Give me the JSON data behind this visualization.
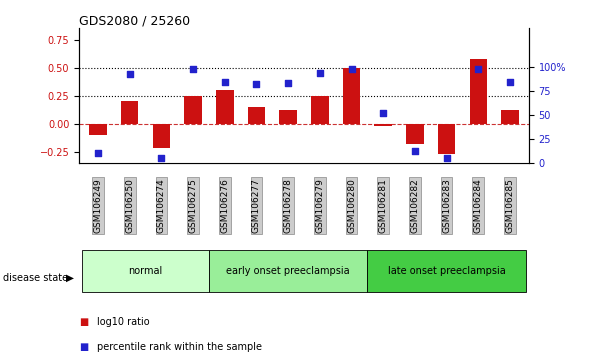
{
  "title": "GDS2080 / 25260",
  "samples": [
    "GSM106249",
    "GSM106250",
    "GSM106274",
    "GSM106275",
    "GSM106276",
    "GSM106277",
    "GSM106278",
    "GSM106279",
    "GSM106280",
    "GSM106281",
    "GSM106282",
    "GSM106283",
    "GSM106284",
    "GSM106285"
  ],
  "log10_ratio": [
    -0.1,
    0.2,
    -0.22,
    0.25,
    0.3,
    0.15,
    0.12,
    0.25,
    0.5,
    -0.02,
    -0.18,
    -0.27,
    0.58,
    0.12
  ],
  "percentile_rank": [
    10,
    92,
    5,
    98,
    84,
    82,
    83,
    93,
    98,
    52,
    12,
    5,
    98,
    84
  ],
  "disease_groups": [
    {
      "label": "normal",
      "start": 0,
      "end": 4,
      "color": "#ccffcc"
    },
    {
      "label": "early onset preeclampsia",
      "start": 4,
      "end": 9,
      "color": "#99ee99"
    },
    {
      "label": "late onset preeclampsia",
      "start": 9,
      "end": 14,
      "color": "#44cc44"
    }
  ],
  "bar_color": "#cc1111",
  "dot_color": "#2222cc",
  "hline_color": "#cc3333",
  "dotted_lines": [
    0.25,
    0.5
  ],
  "ylim_left": [
    -0.35,
    0.85
  ],
  "ylim_right": [
    0,
    140
  ],
  "yticks_left": [
    -0.25,
    0.0,
    0.25,
    0.5,
    0.75
  ],
  "yticks_right": [
    0,
    25,
    50,
    75,
    100
  ],
  "ytick_right_labels": [
    "0",
    "25",
    "50",
    "75",
    "100%"
  ],
  "figsize": [
    6.08,
    3.54
  ],
  "dpi": 100
}
